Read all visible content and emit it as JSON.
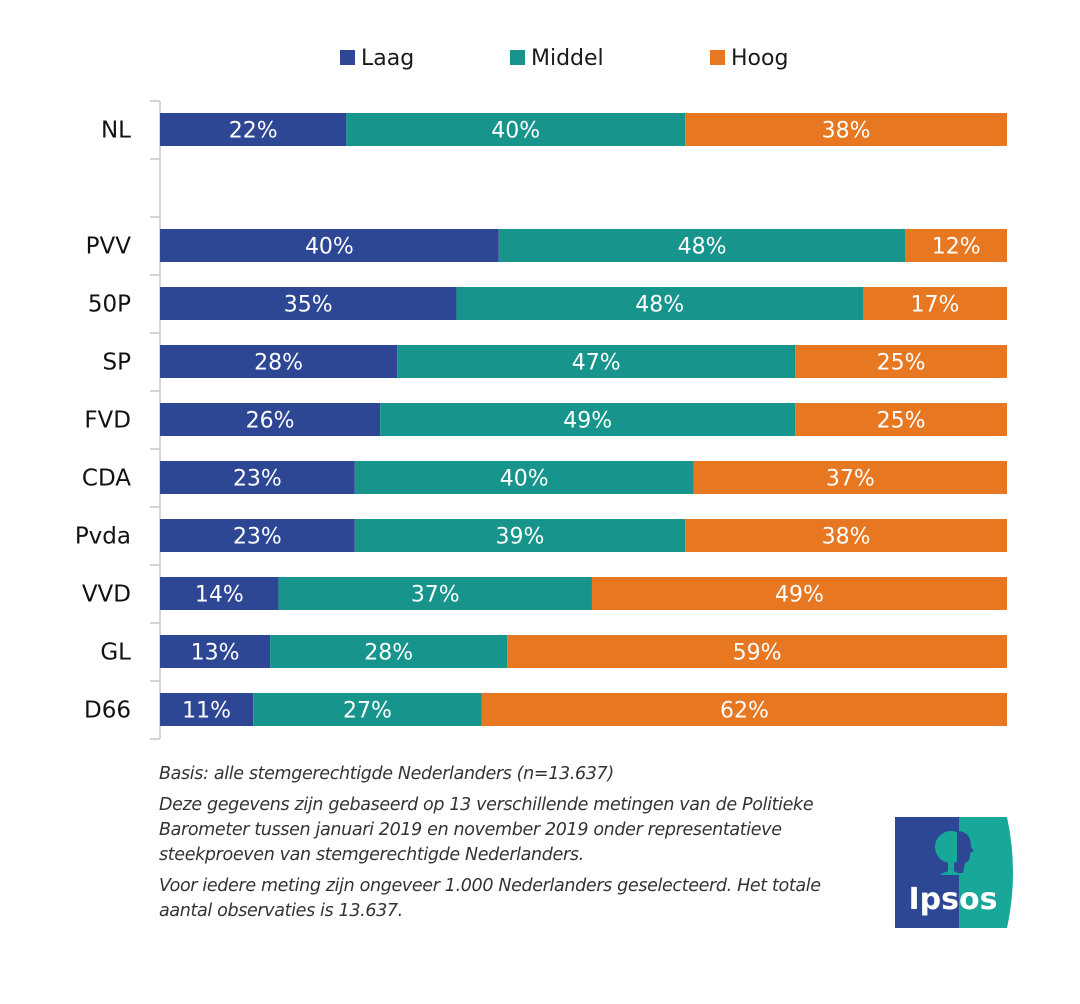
{
  "chart_data": {
    "type": "bar",
    "orientation": "horizontal",
    "stacked": true,
    "percent_stacked": true,
    "title": "",
    "xlabel": "",
    "ylabel": "",
    "xlim": [
      0,
      100
    ],
    "grid": false,
    "legend_position": "top",
    "categories": [
      "NL",
      "",
      "PVV",
      "50P",
      "SP",
      "FVD",
      "CDA",
      "Pvda",
      "VVD",
      "GL",
      "D66"
    ],
    "series": [
      {
        "name": "Laag",
        "color": "#2e4795",
        "values": [
          22,
          null,
          40,
          35,
          28,
          26,
          23,
          23,
          14,
          13,
          11
        ]
      },
      {
        "name": "Middel",
        "color": "#17948c",
        "values": [
          40,
          null,
          48,
          48,
          47,
          49,
          40,
          39,
          37,
          28,
          27
        ]
      },
      {
        "name": "Hoog",
        "color": "#e87722",
        "values": [
          38,
          null,
          12,
          17,
          25,
          25,
          37,
          38,
          49,
          59,
          62
        ]
      }
    ],
    "value_label_suffix": "%"
  },
  "notes": {
    "basis": "Basis: alle stemgerechtigde Nederlanders (n=13.637)",
    "methodology": "Deze gegevens zijn gebaseerd op 13 verschillende metingen van de Politieke Barometer tussen januari 2019 en november 2019 onder representatieve steekproeven van stemgerechtigde Nederlanders.",
    "sample": "Voor iedere meting zijn ongeveer 1.000 Nederlanders geselecteerd. Het totale aantal observaties is 13.637."
  },
  "logo": {
    "text": "Ipsos",
    "colors": {
      "left": "#2e4795",
      "right": "#17a89a"
    }
  }
}
